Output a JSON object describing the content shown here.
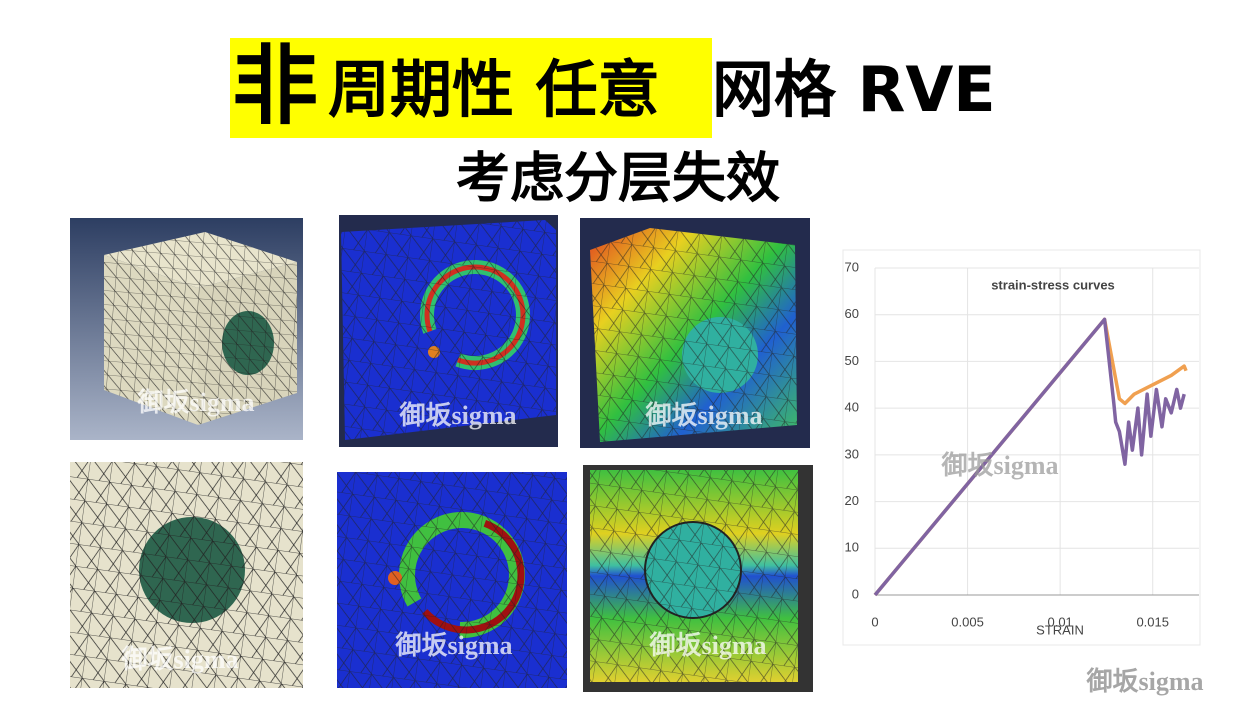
{
  "title_parts": [
    "非",
    "周期性 任意",
    "网格 RVE"
  ],
  "subtitle": "考虑分层失效",
  "watermarks": [
    "御坂sigma",
    "御坂sigma",
    "御坂sigma",
    "御坂sigma",
    "御坂sigma",
    "御坂sigma",
    "御坂sigma",
    "御坂sigma"
  ],
  "chart_data": {
    "type": "line",
    "title": "strain-stress curves",
    "x_label": "STRAIN",
    "xlim": [
      0,
      0.0175
    ],
    "xticks": [
      0,
      0.005,
      0.01,
      0.015
    ],
    "ylim": [
      0,
      70
    ],
    "yticks": [
      0,
      10,
      20,
      30,
      40,
      50,
      60,
      70
    ],
    "grid": true,
    "series": [
      {
        "color": "#f0a050",
        "x": [
          0,
          0.0124,
          0.0132,
          0.0135,
          0.014,
          0.015,
          0.016,
          0.0167,
          0.0168
        ],
        "values": [
          0,
          59,
          42,
          41,
          43,
          45,
          47,
          49,
          48
        ]
      },
      {
        "color": "#8064a2",
        "x": [
          0,
          0.0124,
          0.0129,
          0.013,
          0.0132,
          0.0135,
          0.0137,
          0.0139,
          0.0142,
          0.0144,
          0.0147,
          0.0149,
          0.0152,
          0.0155,
          0.0157,
          0.016,
          0.0163,
          0.0165,
          0.0167
        ],
        "values": [
          0,
          59,
          41,
          37,
          35,
          28,
          37,
          31,
          40,
          30,
          43,
          34,
          44,
          36,
          42,
          39,
          44,
          40,
          43
        ]
      }
    ]
  }
}
